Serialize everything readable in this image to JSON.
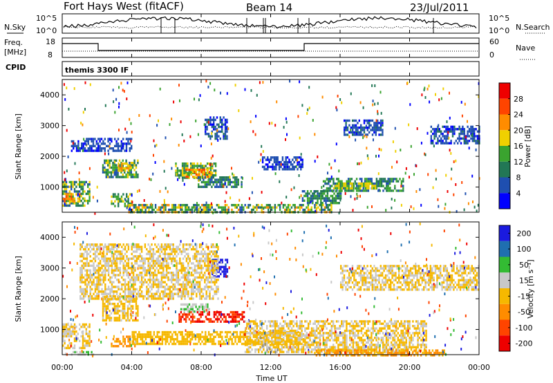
{
  "header": {
    "station": "Fort Hays West (fitACF)",
    "beam": "Beam 14",
    "date": "23/Jul/2011"
  },
  "top_panels": {
    "nsky_label": "N.Sky",
    "nsearch_label": "N.Search",
    "log_ticks": [
      "10^5",
      "10^0"
    ],
    "freq_label": "Freq.",
    "freq_unit": "[MHz]",
    "freq_ticks": [
      18,
      8
    ],
    "nave_label": "Nave",
    "nave_ticks": [
      60,
      0
    ],
    "cpid_label": "CPID",
    "cpid_text": "themis 3300 IF"
  },
  "colors": {
    "power": [
      "#0000ff",
      "#1f4fb0",
      "#227755",
      "#3aa32f",
      "#f0d000",
      "#ff8c00",
      "#ff4400",
      "#ee0000"
    ],
    "velocity": [
      "#ee0000",
      "#ff4400",
      "#ff8c00",
      "#f6b800",
      "#c8c8c8",
      "#33bb33",
      "#1f6fb0",
      "#1a1adf"
    ],
    "ground": "#888888"
  },
  "chart_data": [
    {
      "type": "heatmap",
      "name": "Power",
      "ylabel": "Slant Range [km]",
      "ylim": [
        180,
        4500
      ],
      "yticks": [
        1000,
        2000,
        3000,
        4000
      ],
      "colorbar_label": "Power [dB]",
      "colorbar_ticks": [
        4,
        8,
        12,
        16,
        20,
        24,
        28
      ],
      "scale": [
        0,
        32
      ],
      "regions": [
        {
          "t": [
            0.0,
            1.6
          ],
          "r": [
            400,
            1200
          ],
          "v": [
            4,
            20
          ]
        },
        {
          "t": [
            0.0,
            1.0
          ],
          "r": [
            500,
            800
          ],
          "v": [
            18,
            26
          ]
        },
        {
          "t": [
            2.3,
            4.4
          ],
          "r": [
            1300,
            1900
          ],
          "v": [
            6,
            18
          ]
        },
        {
          "t": [
            3.2,
            3.9
          ],
          "r": [
            1500,
            1800
          ],
          "v": [
            16,
            24
          ]
        },
        {
          "t": [
            2.8,
            4.0
          ],
          "r": [
            400,
            800
          ],
          "v": [
            8,
            18
          ]
        },
        {
          "t": [
            6.5,
            8.8
          ],
          "r": [
            1300,
            1800
          ],
          "v": [
            8,
            20
          ]
        },
        {
          "t": [
            7.0,
            8.6
          ],
          "r": [
            1350,
            1600
          ],
          "v": [
            18,
            26
          ]
        },
        {
          "t": [
            7.8,
            10.3
          ],
          "r": [
            1000,
            1350
          ],
          "v": [
            5,
            14
          ]
        },
        {
          "t": [
            8.2,
            9.5
          ],
          "r": [
            2600,
            3300
          ],
          "v": [
            3,
            9
          ]
        },
        {
          "t": [
            15.0,
            19.6
          ],
          "r": [
            900,
            1300
          ],
          "v": [
            5,
            16
          ]
        },
        {
          "t": [
            15.6,
            18.0
          ],
          "r": [
            950,
            1150
          ],
          "v": [
            14,
            20
          ]
        },
        {
          "t": [
            13.8,
            16.0
          ],
          "r": [
            500,
            900
          ],
          "v": [
            6,
            16
          ]
        },
        {
          "t": [
            3.8,
            15.5
          ],
          "r": [
            180,
            450
          ],
          "v": [
            6,
            22
          ]
        },
        {
          "t": [
            16.2,
            18.4
          ],
          "r": [
            2700,
            3200
          ],
          "v": [
            3,
            9
          ]
        },
        {
          "t": [
            21.2,
            24.0
          ],
          "r": [
            2400,
            3000
          ],
          "v": [
            3,
            9
          ]
        },
        {
          "t": [
            0.5,
            4.0
          ],
          "r": [
            2200,
            2600
          ],
          "v": [
            3,
            8
          ]
        },
        {
          "t": [
            11.5,
            13.8
          ],
          "r": [
            1600,
            2000
          ],
          "v": [
            3,
            8
          ]
        }
      ]
    },
    {
      "type": "heatmap",
      "name": "Velocity",
      "ylabel": "Slant Range [km]",
      "ylim": [
        180,
        4500
      ],
      "yticks": [
        1000,
        2000,
        3000,
        4000
      ],
      "colorbar_label": "Velocity [m s⁻¹]",
      "colorbar_ticks": [
        "200",
        "100",
        "50",
        "15",
        "-15",
        "-50",
        "-100",
        "-200"
      ],
      "scale": [
        -250,
        250
      ],
      "regions": [
        {
          "t": [
            0.0,
            1.6
          ],
          "r": [
            400,
            1200
          ],
          "v": [
            -20,
            15
          ]
        },
        {
          "t": [
            0.5,
            1.8
          ],
          "r": [
            180,
            300
          ],
          "v": [
            40,
            70
          ]
        },
        {
          "t": [
            2.3,
            4.4
          ],
          "r": [
            1300,
            2100
          ],
          "v": [
            -25,
            10
          ]
        },
        {
          "t": [
            2.8,
            4.2
          ],
          "r": [
            450,
            800
          ],
          "v": [
            -90,
            -50
          ]
        },
        {
          "t": [
            6.7,
            10.5
          ],
          "r": [
            1250,
            1600
          ],
          "v": [
            -240,
            -150
          ]
        },
        {
          "t": [
            6.8,
            8.5
          ],
          "r": [
            1600,
            1850
          ],
          "v": [
            40,
            80
          ]
        },
        {
          "t": [
            8.6,
            9.5
          ],
          "r": [
            2700,
            3300
          ],
          "v": [
            180,
            240
          ]
        },
        {
          "t": [
            4.0,
            14.0
          ],
          "r": [
            500,
            950
          ],
          "v": [
            -60,
            -40
          ]
        },
        {
          "t": [
            10.5,
            21.0
          ],
          "r": [
            250,
            1300
          ],
          "v": [
            -20,
            15
          ]
        },
        {
          "t": [
            14.5,
            22.0
          ],
          "r": [
            180,
            350
          ],
          "v": [
            -80,
            -50
          ]
        },
        {
          "t": [
            16.0,
            24.0
          ],
          "r": [
            2300,
            3100
          ],
          "v": [
            -20,
            15
          ]
        },
        {
          "t": [
            1.0,
            9.0
          ],
          "r": [
            2000,
            3800
          ],
          "v": [
            -50,
            50
          ]
        }
      ]
    }
  ],
  "axis": {
    "xlabel": "Time UT",
    "xticks": [
      "00:00",
      "04:00",
      "08:00",
      "12:00",
      "16:00",
      "20:00",
      "00:00"
    ],
    "xlim": [
      0,
      24
    ]
  }
}
